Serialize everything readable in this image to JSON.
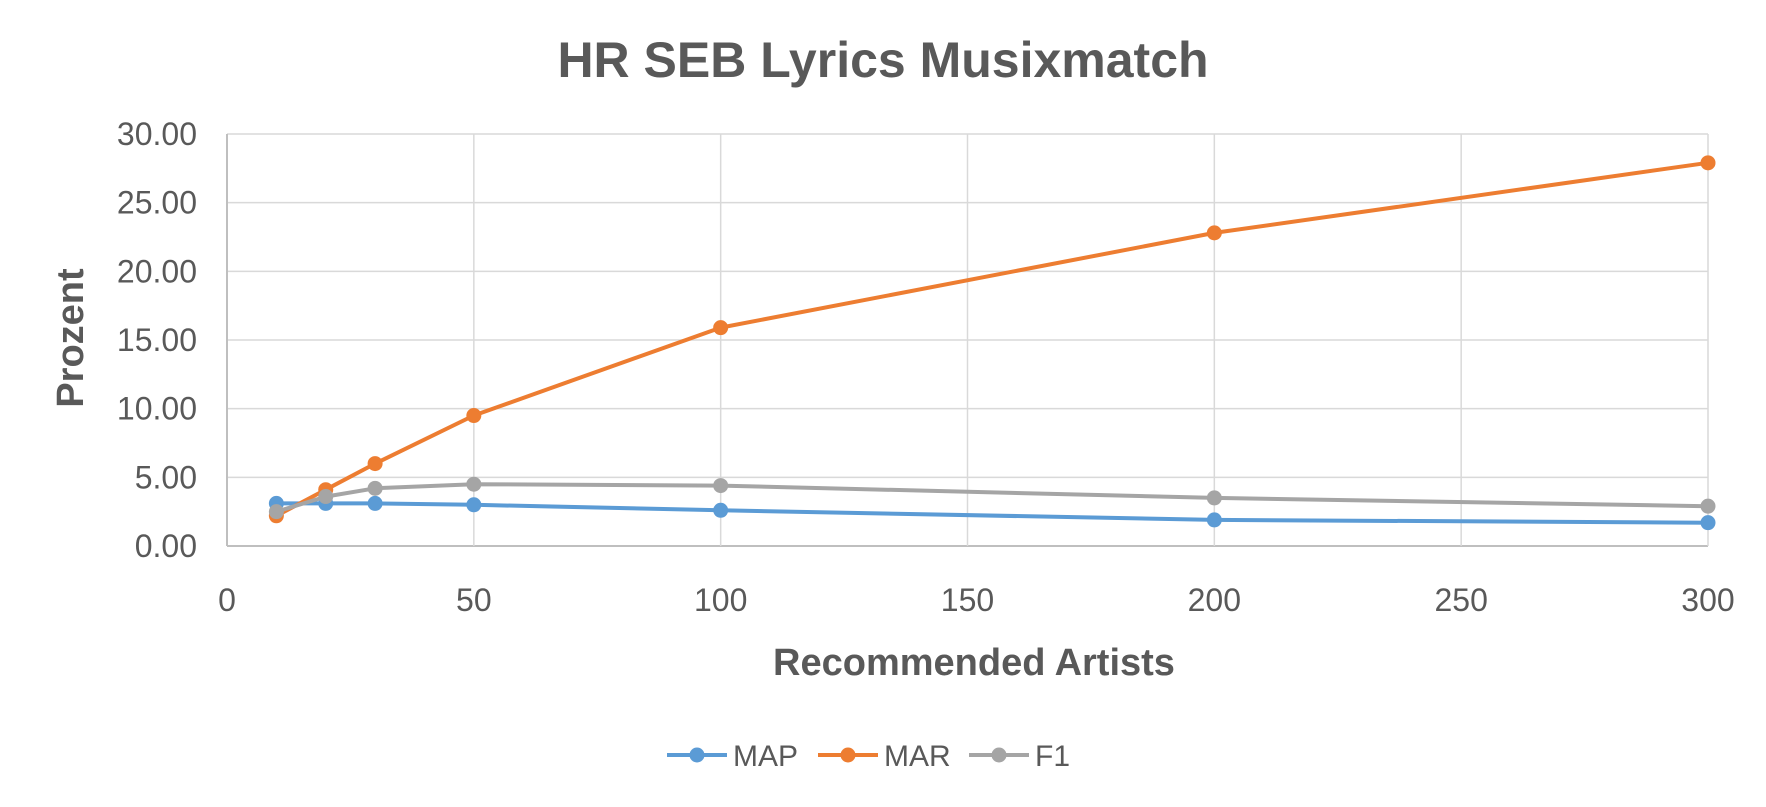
{
  "chart_data": {
    "type": "line",
    "title": "HR SEB Lyrics Musixmatch",
    "xlabel": "Recommended Artists",
    "ylabel": "Prozent",
    "xlim": [
      0,
      300
    ],
    "ylim": [
      0,
      30
    ],
    "x_ticks": [
      0,
      50,
      100,
      150,
      200,
      250,
      300
    ],
    "y_ticks": [
      0,
      5,
      10,
      15,
      20,
      25,
      30
    ],
    "x_tick_labels": [
      "0",
      "50",
      "100",
      "150",
      "200",
      "250",
      "300"
    ],
    "y_tick_labels": [
      "0.00",
      "5.00",
      "10.00",
      "15.00",
      "20.00",
      "25.00",
      "30.00"
    ],
    "grid": true,
    "legend_position": "bottom-center",
    "x": [
      10,
      20,
      30,
      50,
      100,
      200,
      300
    ],
    "series": [
      {
        "name": "MAP",
        "color": "#5b9bd5",
        "values": [
          3.1,
          3.1,
          3.1,
          3.0,
          2.6,
          1.9,
          1.7
        ]
      },
      {
        "name": "MAR",
        "color": "#ed7d31",
        "values": [
          2.2,
          4.1,
          6.0,
          9.5,
          15.9,
          22.8,
          27.9
        ]
      },
      {
        "name": "F1",
        "color": "#a5a5a5",
        "values": [
          2.5,
          3.6,
          4.2,
          4.5,
          4.4,
          3.5,
          2.9
        ]
      }
    ]
  }
}
